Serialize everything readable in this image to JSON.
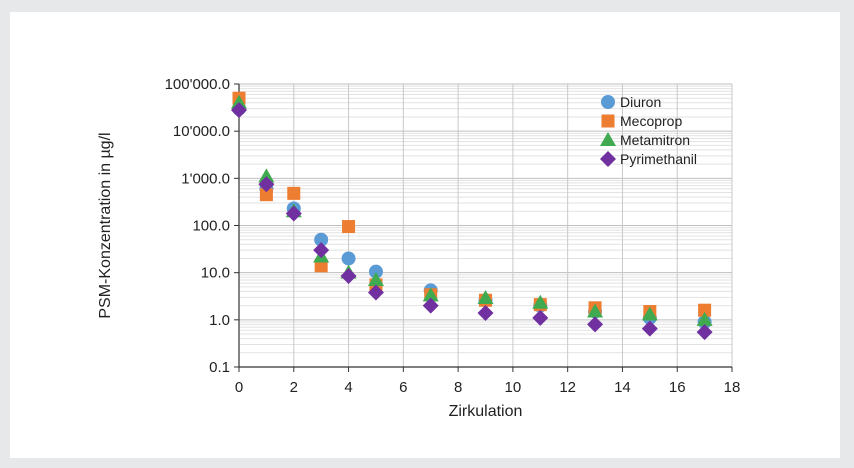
{
  "chart_data": {
    "type": "scatter",
    "xlabel": "Zirkulation",
    "ylabel": "PSM-Konzentration in µg/l",
    "xlim": [
      0,
      18
    ],
    "ylim": [
      0.1,
      100000
    ],
    "yscale": "log",
    "x_ticks": [
      "0",
      "2",
      "4",
      "6",
      "8",
      "10",
      "12",
      "14",
      "16",
      "18"
    ],
    "y_ticks": [
      "0.1",
      "1.0",
      "10.0",
      "100.0",
      "1'000.0",
      "10'000.0",
      "100'000.0"
    ],
    "grid": true,
    "legend_position": "top-right",
    "series": [
      {
        "name": "Diuron",
        "marker": "circle",
        "color": "#5b9bd5",
        "points": [
          [
            0,
            30000
          ],
          [
            1,
            600
          ],
          [
            2,
            230
          ],
          [
            3,
            50
          ],
          [
            4,
            20
          ],
          [
            5,
            10.5
          ],
          [
            7,
            4.2
          ],
          [
            9,
            2.6
          ],
          [
            11,
            2.0
          ],
          [
            13,
            1.5
          ],
          [
            15,
            1.1
          ],
          [
            17,
            0.9
          ]
        ]
      },
      {
        "name": "Mecoprop",
        "marker": "square",
        "color": "#ed7d31",
        "points": [
          [
            0,
            50000
          ],
          [
            1,
            450
          ],
          [
            2,
            480
          ],
          [
            3,
            14
          ],
          [
            4,
            95
          ],
          [
            5,
            5.5
          ],
          [
            7,
            3.4
          ],
          [
            9,
            2.6
          ],
          [
            11,
            2.1
          ],
          [
            13,
            1.8
          ],
          [
            15,
            1.5
          ],
          [
            17,
            1.6
          ]
        ]
      },
      {
        "name": "Metamitron",
        "marker": "triangle",
        "color": "#3faa4f",
        "points": [
          [
            0,
            40000
          ],
          [
            1,
            1100
          ],
          [
            2,
            200
          ],
          [
            3,
            22
          ],
          [
            4,
            10
          ],
          [
            5,
            7.0
          ],
          [
            7,
            3.3
          ],
          [
            9,
            2.9
          ],
          [
            11,
            2.3
          ],
          [
            13,
            1.5
          ],
          [
            15,
            1.3
          ],
          [
            17,
            1.0
          ]
        ]
      },
      {
        "name": "Pyrimethanil",
        "marker": "diamond",
        "color": "#7030a0",
        "points": [
          [
            0,
            28000
          ],
          [
            1,
            750
          ],
          [
            2,
            180
          ],
          [
            3,
            30
          ],
          [
            4,
            8.5
          ],
          [
            5,
            3.8
          ],
          [
            7,
            2.0
          ],
          [
            9,
            1.4
          ],
          [
            11,
            1.1
          ],
          [
            13,
            0.8
          ],
          [
            15,
            0.65
          ],
          [
            17,
            0.55
          ]
        ]
      }
    ]
  }
}
